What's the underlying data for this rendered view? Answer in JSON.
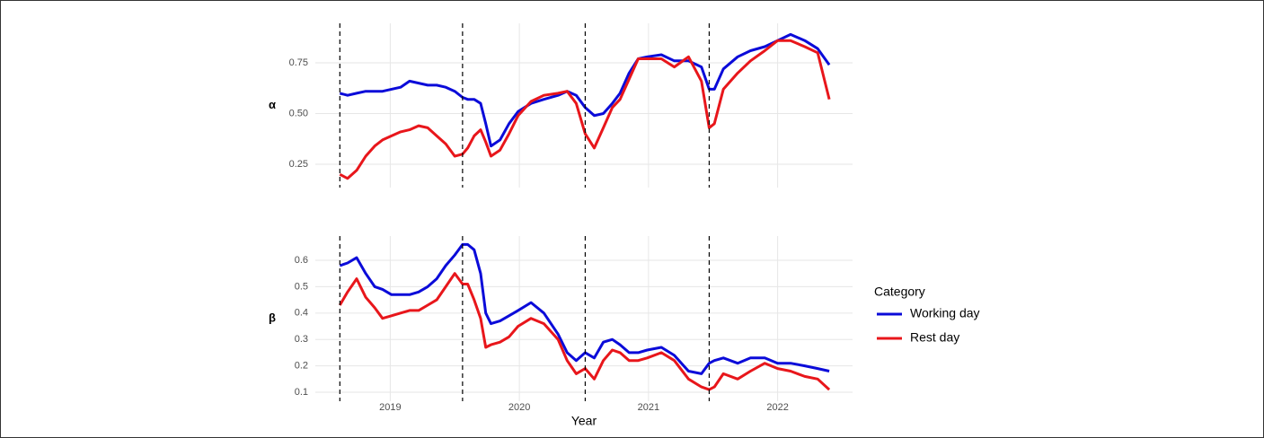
{
  "chart_data": [
    {
      "type": "line",
      "ylabel": "α",
      "x": [
        2018.61,
        2018.67,
        2018.74,
        2018.81,
        2018.88,
        2018.94,
        2019.01,
        2019.08,
        2019.15,
        2019.22,
        2019.29,
        2019.36,
        2019.43,
        2019.5,
        2019.56,
        2019.6,
        2019.65,
        2019.7,
        2019.74,
        2019.78,
        2019.85,
        2019.92,
        2019.99,
        2020.09,
        2020.19,
        2020.3,
        2020.37,
        2020.44,
        2020.51,
        2020.58,
        2020.65,
        2020.72,
        2020.78,
        2020.85,
        2020.92,
        2020.99,
        2021.1,
        2021.2,
        2021.31,
        2021.41,
        2021.47,
        2021.51,
        2021.58,
        2021.69,
        2021.79,
        2021.9,
        2022.0,
        2022.1,
        2022.21,
        2022.31,
        2022.4
      ],
      "series": [
        {
          "name": "Working day",
          "color": "#0b0bd9",
          "values": [
            0.6,
            0.59,
            0.6,
            0.61,
            0.61,
            0.61,
            0.62,
            0.63,
            0.66,
            0.65,
            0.64,
            0.64,
            0.63,
            0.61,
            0.58,
            0.57,
            0.57,
            0.55,
            0.45,
            0.34,
            0.37,
            0.45,
            0.51,
            0.55,
            0.57,
            0.59,
            0.61,
            0.59,
            0.53,
            0.49,
            0.5,
            0.55,
            0.6,
            0.7,
            0.77,
            0.78,
            0.79,
            0.76,
            0.76,
            0.73,
            0.62,
            0.62,
            0.72,
            0.78,
            0.81,
            0.83,
            0.86,
            0.89,
            0.86,
            0.82,
            0.74
          ]
        },
        {
          "name": "Rest day",
          "color": "#e8161b",
          "values": [
            0.2,
            0.18,
            0.22,
            0.29,
            0.34,
            0.37,
            0.39,
            0.41,
            0.42,
            0.44,
            0.43,
            0.39,
            0.35,
            0.29,
            0.3,
            0.33,
            0.39,
            0.42,
            0.36,
            0.29,
            0.32,
            0.4,
            0.49,
            0.56,
            0.59,
            0.6,
            0.61,
            0.55,
            0.4,
            0.33,
            0.43,
            0.53,
            0.57,
            0.67,
            0.77,
            0.77,
            0.77,
            0.73,
            0.78,
            0.66,
            0.43,
            0.45,
            0.62,
            0.7,
            0.76,
            0.81,
            0.86,
            0.86,
            0.83,
            0.8,
            0.57
          ]
        }
      ],
      "xlim": [
        2018.42,
        2022.58
      ],
      "xticks": [
        2019,
        2020,
        2021,
        2022
      ],
      "ylim": [
        0.135,
        0.945
      ],
      "yticks": [
        0.25,
        {
          "value": 0.5,
          "label": "0.50"
        },
        0.75
      ],
      "vlines": [
        2018.61,
        2019.56,
        2020.51,
        2021.47
      ],
      "grid": true
    },
    {
      "type": "line",
      "ylabel": "β",
      "xlabel": "Year",
      "legend_title": "Category",
      "legend": "right",
      "x": [
        2018.61,
        2018.67,
        2018.74,
        2018.81,
        2018.88,
        2018.94,
        2019.01,
        2019.08,
        2019.15,
        2019.22,
        2019.29,
        2019.36,
        2019.43,
        2019.5,
        2019.56,
        2019.6,
        2019.65,
        2019.7,
        2019.74,
        2019.78,
        2019.85,
        2019.92,
        2019.99,
        2020.09,
        2020.19,
        2020.3,
        2020.37,
        2020.44,
        2020.51,
        2020.58,
        2020.65,
        2020.72,
        2020.78,
        2020.85,
        2020.92,
        2020.99,
        2021.1,
        2021.2,
        2021.31,
        2021.41,
        2021.47,
        2021.51,
        2021.58,
        2021.69,
        2021.79,
        2021.9,
        2022.0,
        2022.1,
        2022.21,
        2022.31,
        2022.4
      ],
      "series": [
        {
          "name": "Working day",
          "color": "#0b0bd9",
          "values": [
            0.58,
            0.59,
            0.61,
            0.55,
            0.5,
            0.49,
            0.47,
            0.47,
            0.47,
            0.48,
            0.5,
            0.53,
            0.58,
            0.62,
            0.66,
            0.66,
            0.64,
            0.55,
            0.4,
            0.36,
            0.37,
            0.39,
            0.41,
            0.44,
            0.4,
            0.32,
            0.25,
            0.22,
            0.25,
            0.23,
            0.29,
            0.3,
            0.28,
            0.25,
            0.25,
            0.26,
            0.27,
            0.24,
            0.18,
            0.17,
            0.21,
            0.22,
            0.23,
            0.21,
            0.23,
            0.23,
            0.21,
            0.21,
            0.2,
            0.19,
            0.18
          ]
        },
        {
          "name": "Rest day",
          "color": "#e8161b",
          "values": [
            0.43,
            0.48,
            0.53,
            0.46,
            0.42,
            0.38,
            0.39,
            0.4,
            0.41,
            0.41,
            0.43,
            0.45,
            0.5,
            0.55,
            0.51,
            0.51,
            0.45,
            0.38,
            0.27,
            0.28,
            0.29,
            0.31,
            0.35,
            0.38,
            0.36,
            0.3,
            0.22,
            0.17,
            0.19,
            0.15,
            0.22,
            0.26,
            0.25,
            0.22,
            0.22,
            0.23,
            0.25,
            0.22,
            0.15,
            0.12,
            0.11,
            0.12,
            0.17,
            0.15,
            0.18,
            0.21,
            0.19,
            0.18,
            0.16,
            0.15,
            0.11
          ]
        }
      ],
      "xlim": [
        2018.42,
        2022.58
      ],
      "xticks": [
        2019,
        2020,
        2021,
        2022
      ],
      "ylim": [
        0.066,
        0.692
      ],
      "yticks": [
        0.1,
        0.2,
        0.3,
        0.4,
        0.5,
        0.6
      ],
      "vlines": [
        2018.61,
        2019.56,
        2020.51,
        2021.47
      ],
      "grid": true
    }
  ]
}
